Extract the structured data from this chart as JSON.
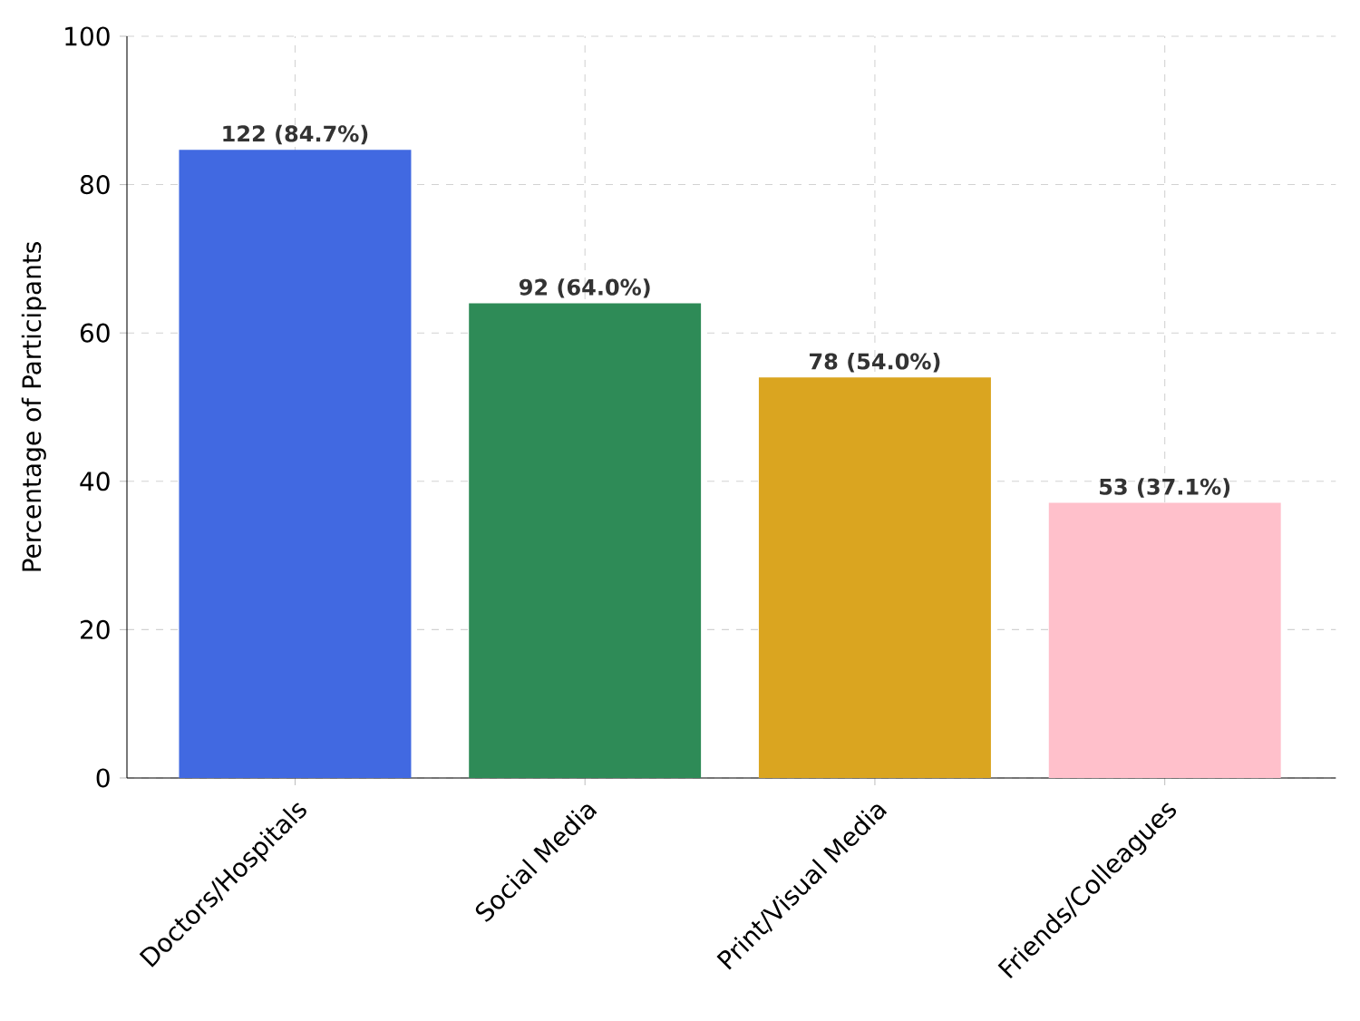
{
  "chart_data": {
    "type": "bar",
    "ylabel": "Percentage of Participants",
    "categories": [
      "Doctors/Hospitals",
      "Social Media",
      "Print/Visual Media",
      "Friends/Colleagues"
    ],
    "values": [
      84.7,
      64.0,
      54.0,
      37.1
    ],
    "colors": [
      "#4169e1",
      "#2e8b57",
      "#daa520",
      "#ffc0cb"
    ],
    "value_labels": [
      "122 (84.7%)",
      "92 (64.0%)",
      "78 (54.0%)",
      "53 (37.1%)"
    ],
    "ylim": [
      0,
      100
    ],
    "yticks": [
      0,
      20,
      40,
      60,
      80,
      100
    ],
    "grid": true
  }
}
